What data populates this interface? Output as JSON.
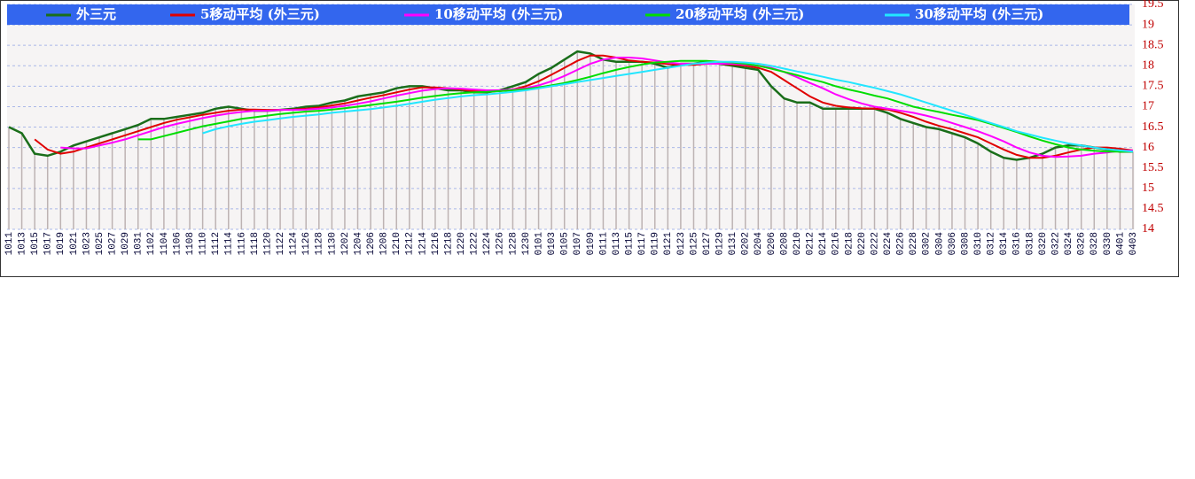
{
  "chart_data": {
    "type": "line",
    "categories": [
      "1011",
      "1013",
      "1015",
      "1017",
      "1019",
      "1021",
      "1023",
      "1025",
      "1027",
      "1029",
      "1031",
      "1102",
      "1104",
      "1106",
      "1108",
      "1110",
      "1112",
      "1114",
      "1116",
      "1118",
      "1120",
      "1122",
      "1124",
      "1126",
      "1128",
      "1130",
      "1202",
      "1204",
      "1206",
      "1208",
      "1210",
      "1212",
      "1214",
      "1216",
      "1218",
      "1220",
      "1222",
      "1224",
      "1226",
      "1228",
      "1230",
      "0101",
      "0103",
      "0105",
      "0107",
      "0109",
      "0111",
      "0113",
      "0115",
      "0117",
      "0119",
      "0121",
      "0123",
      "0125",
      "0127",
      "0129",
      "0131",
      "0202",
      "0204",
      "0206",
      "0208",
      "0210",
      "0212",
      "0214",
      "0216",
      "0218",
      "0220",
      "0222",
      "0224",
      "0226",
      "0228",
      "0302",
      "0304",
      "0306",
      "0308",
      "0310",
      "0312",
      "0314",
      "0316",
      "0318",
      "0320",
      "0322",
      "0324",
      "0326",
      "0328",
      "0330",
      "0401",
      "0403"
    ],
    "series": [
      {
        "name": "外三元",
        "color": "#1a6e1a",
        "values": [
          16.5,
          16.35,
          15.85,
          15.8,
          15.9,
          16.05,
          16.15,
          16.25,
          16.35,
          16.45,
          16.55,
          16.7,
          16.7,
          16.75,
          16.8,
          16.85,
          16.95,
          17.0,
          16.95,
          16.9,
          16.9,
          16.92,
          16.95,
          17.0,
          17.02,
          17.1,
          17.15,
          17.25,
          17.3,
          17.35,
          17.45,
          17.5,
          17.5,
          17.45,
          17.4,
          17.4,
          17.35,
          17.35,
          17.4,
          17.5,
          17.6,
          17.8,
          17.95,
          18.15,
          18.35,
          18.3,
          18.15,
          18.1,
          18.1,
          18.1,
          18.05,
          17.95,
          18.05,
          18.05,
          18.1,
          18.05,
          18.0,
          17.95,
          17.9,
          17.5,
          17.2,
          17.1,
          17.1,
          16.95,
          16.95,
          16.95,
          16.95,
          16.95,
          16.85,
          16.7,
          16.6,
          16.5,
          16.45,
          16.35,
          16.25,
          16.1,
          15.9,
          15.75,
          15.7,
          15.75,
          15.85,
          16.0,
          16.05,
          16.05,
          16.0,
          15.95,
          15.9,
          15.9
        ]
      },
      {
        "name": "5移动平均 (外三元)",
        "color": "#e00000",
        "values": [
          null,
          null,
          16.2,
          15.95,
          15.85,
          15.9,
          16.0,
          16.1,
          16.2,
          16.3,
          16.4,
          16.5,
          16.6,
          16.68,
          16.74,
          16.8,
          16.85,
          16.9,
          16.93,
          16.93,
          16.92,
          16.92,
          16.93,
          16.95,
          16.98,
          17.03,
          17.08,
          17.15,
          17.22,
          17.28,
          17.35,
          17.42,
          17.47,
          17.47,
          17.45,
          17.42,
          17.38,
          17.37,
          17.38,
          17.42,
          17.5,
          17.62,
          17.78,
          17.95,
          18.12,
          18.25,
          18.25,
          18.2,
          18.13,
          18.1,
          18.08,
          18.04,
          18.02,
          18.02,
          18.05,
          18.05,
          18.03,
          18.0,
          17.95,
          17.85,
          17.65,
          17.45,
          17.25,
          17.1,
          17.02,
          16.98,
          16.96,
          16.95,
          16.93,
          16.85,
          16.75,
          16.63,
          16.53,
          16.45,
          16.35,
          16.25,
          16.1,
          15.95,
          15.82,
          15.75,
          15.75,
          15.8,
          15.88,
          15.95,
          16.0,
          16.0,
          15.97,
          15.93
        ]
      },
      {
        "name": "10移动平均 (外三元)",
        "color": "#ff00ff",
        "values": [
          null,
          null,
          null,
          null,
          16.0,
          15.98,
          15.98,
          16.05,
          16.12,
          16.2,
          16.3,
          16.4,
          16.5,
          16.58,
          16.65,
          16.72,
          16.78,
          16.83,
          16.87,
          16.9,
          16.9,
          16.92,
          16.92,
          16.93,
          16.95,
          16.98,
          17.02,
          17.07,
          17.13,
          17.2,
          17.27,
          17.33,
          17.39,
          17.43,
          17.45,
          17.44,
          17.42,
          17.4,
          17.4,
          17.42,
          17.45,
          17.52,
          17.62,
          17.75,
          17.9,
          18.05,
          18.15,
          18.2,
          18.2,
          18.18,
          18.13,
          18.08,
          18.05,
          18.05,
          18.05,
          18.05,
          18.05,
          18.03,
          18.0,
          17.95,
          17.85,
          17.72,
          17.58,
          17.45,
          17.3,
          17.18,
          17.08,
          17.0,
          16.95,
          16.9,
          16.85,
          16.78,
          16.7,
          16.6,
          16.5,
          16.4,
          16.28,
          16.15,
          16.0,
          15.88,
          15.8,
          15.77,
          15.78,
          15.8,
          15.85,
          15.88,
          15.92,
          15.93
        ]
      },
      {
        "name": "20移动平均 (外三元)",
        "color": "#00dd00",
        "values": [
          null,
          null,
          null,
          null,
          null,
          null,
          null,
          null,
          null,
          null,
          16.2,
          16.2,
          16.28,
          16.36,
          16.44,
          16.52,
          16.58,
          16.64,
          16.7,
          16.74,
          16.78,
          16.82,
          16.85,
          16.88,
          16.9,
          16.93,
          16.96,
          17.0,
          17.04,
          17.08,
          17.12,
          17.17,
          17.22,
          17.26,
          17.3,
          17.33,
          17.35,
          17.36,
          17.38,
          17.4,
          17.43,
          17.47,
          17.52,
          17.58,
          17.65,
          17.73,
          17.82,
          17.9,
          17.97,
          18.03,
          18.08,
          18.1,
          18.12,
          18.12,
          18.12,
          18.1,
          18.08,
          18.05,
          18.0,
          17.93,
          17.85,
          17.77,
          17.68,
          17.6,
          17.5,
          17.42,
          17.35,
          17.27,
          17.2,
          17.1,
          17.0,
          16.93,
          16.87,
          16.8,
          16.74,
          16.67,
          16.58,
          16.48,
          16.38,
          16.27,
          16.17,
          16.08,
          16.0,
          15.95,
          15.92,
          15.9,
          15.9,
          15.9
        ]
      },
      {
        "name": "30移动平均 (外三元)",
        "color": "#22e6ff",
        "values": [
          null,
          null,
          null,
          null,
          null,
          null,
          null,
          null,
          null,
          null,
          null,
          null,
          null,
          null,
          null,
          16.35,
          16.45,
          16.52,
          16.58,
          16.63,
          16.67,
          16.71,
          16.75,
          16.78,
          16.81,
          16.85,
          16.88,
          16.91,
          16.94,
          16.98,
          17.02,
          17.07,
          17.12,
          17.17,
          17.21,
          17.25,
          17.28,
          17.3,
          17.33,
          17.36,
          17.4,
          17.45,
          17.5,
          17.55,
          17.6,
          17.65,
          17.7,
          17.75,
          17.8,
          17.85,
          17.9,
          17.95,
          18.0,
          18.05,
          18.08,
          18.1,
          18.1,
          18.08,
          18.05,
          18.0,
          17.93,
          17.86,
          17.8,
          17.73,
          17.66,
          17.6,
          17.53,
          17.46,
          17.38,
          17.3,
          17.2,
          17.1,
          17.0,
          16.9,
          16.8,
          16.7,
          16.6,
          16.5,
          16.4,
          16.32,
          16.24,
          16.17,
          16.1,
          16.05,
          16.0,
          15.96,
          15.93,
          15.9
        ]
      }
    ],
    "ylim": [
      14,
      19.5
    ],
    "yticks": [
      14,
      14.5,
      15,
      15.5,
      16,
      16.5,
      17,
      17.5,
      18,
      18.5,
      19,
      19.5
    ],
    "grid": true,
    "legend": "top"
  }
}
